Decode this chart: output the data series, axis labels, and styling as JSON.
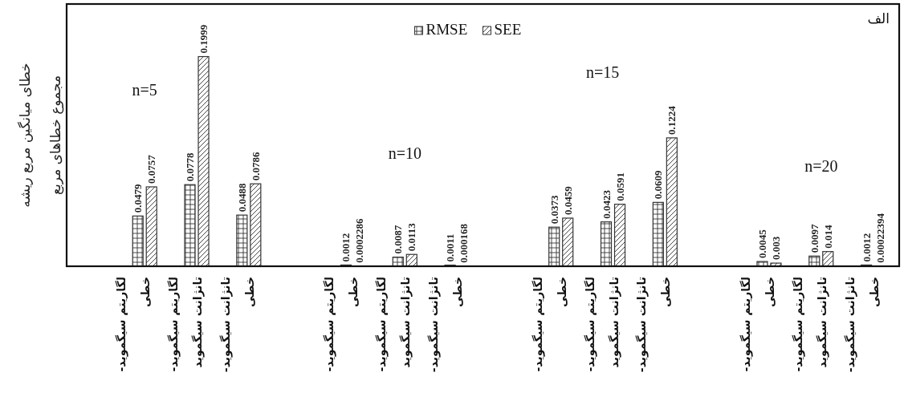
{
  "chart_data": {
    "type": "bar",
    "ylabel": "خطای میانگین مربع ریشه\nمجموع خطاهای مربع",
    "categories": [
      null,
      "لگاریتم سیگموید-\nخطی",
      "لگاریتم سیگموید-\nتانژانت سیگموید",
      "تانژانت سیگموید-\nخطی",
      null,
      "لگاریتم سیگموید-\nخطی",
      "لگاریتم سیگموید-\nتانژانت سیگموید",
      "تانژانت سیگموید-\nخطی",
      null,
      "لگاریتم سیگموید-\nخطی",
      "لگاریتم سیگموید-\nتانژانت سیگموید",
      "تانژانت سیگموید-\nخطی",
      null,
      "لگاریتم سیگموید-\nخطی",
      "لگاریتم سیگموید-\nتانژانت سیگموید",
      "تانژانت سیگموید-\nخطی"
    ],
    "series": [
      {
        "name": "RMSE",
        "color": "#333333",
        "values": [
          null,
          0.0479,
          0.0778,
          0.0488,
          null,
          0.0012,
          0.0087,
          0.0011,
          null,
          0.0373,
          0.0423,
          0.0609,
          null,
          0.0045,
          0.0097,
          0.0012
        ]
      },
      {
        "name": "SEE",
        "color": "#333333",
        "values": [
          null,
          0.0757,
          0.1999,
          0.0786,
          null,
          0.0002286,
          0.0113,
          0.000168,
          null,
          0.0459,
          0.0591,
          0.1224,
          null,
          0.003,
          0.014,
          0.00022394
        ]
      }
    ],
    "ylim": [
      0,
      0.25
    ],
    "data_labels": true,
    "legend": "top",
    "annotations": [
      "n=5",
      "n=10",
      "n=15",
      "n=20",
      "الف"
    ]
  }
}
